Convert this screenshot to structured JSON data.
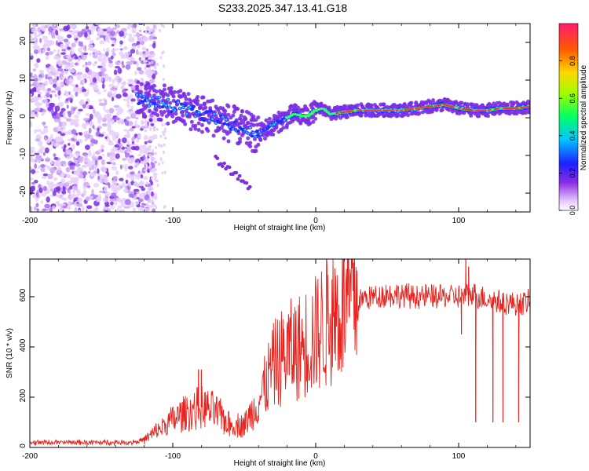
{
  "title": "S233.2025.347.13.41.G18",
  "chart_data": [
    {
      "type": "heatmap",
      "xlabel": "Height of straight line (km)",
      "ylabel": "Frequency (Hz)",
      "xlim": [
        -200,
        150
      ],
      "ylim": [
        -25,
        25
      ],
      "xticks": [
        -200,
        -100,
        0,
        100
      ],
      "yticks": [
        -20,
        -10,
        0,
        10,
        20
      ],
      "colorbar": {
        "label": "Normalized spectral amplitude",
        "range": [
          0,
          1
        ],
        "ticks": [
          0.0,
          0.2,
          0.4,
          0.6,
          0.8
        ],
        "tick_labels": [
          "0.0",
          "0.2",
          "0.4",
          "0.6",
          "0.8"
        ]
      },
      "ridge": {
        "x": [
          -125,
          -110,
          -100,
          -90,
          -80,
          -70,
          -60,
          -50,
          -45,
          -40,
          -35,
          -30,
          -25,
          -20,
          -15,
          -10,
          -5,
          0,
          5,
          10,
          20,
          30,
          40,
          50,
          60,
          70,
          80,
          90,
          100,
          110,
          120,
          130,
          140,
          150
        ],
        "freq": [
          5,
          4,
          3,
          2,
          1,
          0,
          -1.5,
          -3,
          -4,
          -4.5,
          -3,
          -2,
          -1,
          0,
          1,
          0.5,
          0.5,
          2,
          2.5,
          1,
          1.5,
          2,
          2,
          2,
          2,
          2.5,
          3,
          3.5,
          2.5,
          2,
          2,
          2.5,
          2.5,
          3
        ]
      },
      "secondary_branch": {
        "x": [
          -70,
          -60,
          -50,
          -45
        ],
        "freq": [
          -11,
          -14,
          -17,
          -19
        ]
      },
      "noise_region": {
        "x_from": -200,
        "x_to": -120,
        "freq_from": -25,
        "freq_to": 25
      }
    },
    {
      "type": "line",
      "xlabel": "Height of straight line (km)",
      "ylabel": "SNR (10 * v/v)",
      "xlim": [
        -200,
        150
      ],
      "ylim": [
        0,
        750
      ],
      "xticks": [
        -200,
        -100,
        0,
        100
      ],
      "yticks": [
        0,
        200,
        400,
        600
      ],
      "color": "#e8221d",
      "envelope": {
        "x": [
          -200,
          -130,
          -120,
          -110,
          -100,
          -90,
          -80,
          -70,
          -60,
          -50,
          -40,
          -30,
          -20,
          -10,
          0,
          10,
          20,
          25,
          30,
          40,
          50,
          60,
          80,
          100,
          110,
          120,
          130,
          140,
          150
        ],
        "mean": [
          20,
          20,
          30,
          70,
          110,
          140,
          160,
          140,
          90,
          90,
          180,
          320,
          380,
          400,
          450,
          520,
          560,
          580,
          590,
          600,
          610,
          605,
          600,
          600,
          610,
          590,
          580,
          570,
          580
        ]
      },
      "spikes": [
        {
          "x": 105,
          "value": 750
        },
        {
          "x": 107,
          "value": 720
        },
        {
          "x": 102,
          "value": 450
        },
        {
          "x": 112,
          "value": 100
        },
        {
          "x": 124,
          "value": 100
        },
        {
          "x": 131,
          "value": 100
        },
        {
          "x": 142,
          "value": 100
        },
        {
          "x": -82,
          "value": 310
        },
        {
          "x": -80,
          "value": 310
        }
      ]
    }
  ]
}
